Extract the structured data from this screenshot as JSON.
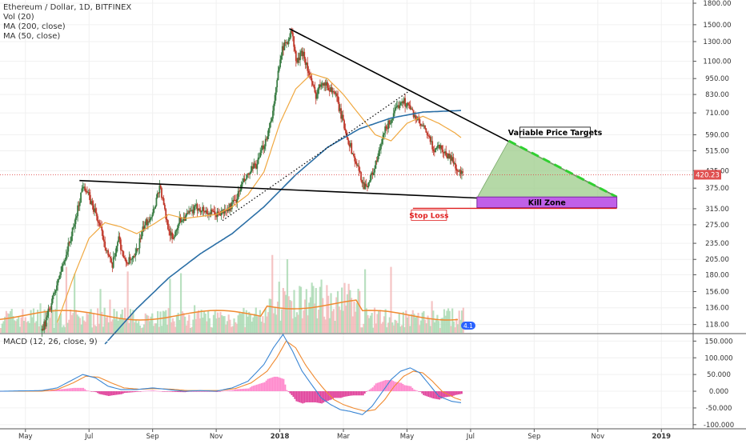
{
  "header": {
    "symbol": "Ethereum / Dollar, 1D, BITFINEX",
    "indicators": [
      "Vol (20)",
      "MA (200, close)",
      "MA (50, close)"
    ]
  },
  "colors": {
    "candle_up": "#3a7d44",
    "candle_down": "#c0392b",
    "ma200": "#2b6fa6",
    "ma50": "#f0a840",
    "vol_ma": "#f08a30",
    "macd_line": "#3a86d4",
    "signal_line": "#f08a30",
    "hist_pos": "#ff88cc",
    "hist_neg": "#e0409a",
    "target_zone": "#9ccc8a",
    "kill_zone": "#c060e8",
    "green_dash": "#30d030",
    "stop_loss": "#e02020"
  },
  "chart_data": [
    {
      "type": "candlestick",
      "title": "Ethereum / Dollar, 1D, BITFINEX",
      "y_scale": "log",
      "ylim": [
        110,
        1800
      ],
      "y_ticks": [
        1800,
        1500,
        1300,
        1100,
        950,
        830,
        710,
        590,
        515,
        435,
        375,
        315,
        275,
        235,
        205,
        180,
        156,
        136,
        118
      ],
      "y_tick_labels": [
        "1800.00",
        "1500.00",
        "1300.00",
        "1100.00",
        "950.00",
        "830.00",
        "710.00",
        "590.00",
        "515.00",
        "435.00",
        "375.00",
        "315.00",
        "275.00",
        "235.00",
        "205.00",
        "180.00",
        "156.00",
        "136.00",
        "118.00"
      ],
      "x_ticks": [
        {
          "label": "May",
          "month": 0
        },
        {
          "label": "Jul",
          "month": 2
        },
        {
          "label": "Sep",
          "month": 4
        },
        {
          "label": "Nov",
          "month": 6
        },
        {
          "label": "2018",
          "month": 8
        },
        {
          "label": "Mar",
          "month": 10
        },
        {
          "label": "May",
          "month": 12
        },
        {
          "label": "Jul",
          "month": 14
        },
        {
          "label": "Sep",
          "month": 16
        },
        {
          "label": "Nov",
          "month": 18
        },
        {
          "label": "2019",
          "month": 20
        }
      ],
      "xlim_months": [
        -0.8,
        21.0
      ],
      "last_price": 420.23,
      "last_price_label": "420.23",
      "price_path": [
        [
          0.5,
          112
        ],
        [
          0.6,
          120
        ],
        [
          1.0,
          170
        ],
        [
          1.5,
          270
        ],
        [
          1.8,
          395
        ],
        [
          2.0,
          340
        ],
        [
          2.2,
          300
        ],
        [
          2.5,
          230
        ],
        [
          2.7,
          190
        ],
        [
          2.9,
          250
        ],
        [
          3.1,
          200
        ],
        [
          3.4,
          205
        ],
        [
          3.7,
          270
        ],
        [
          4.0,
          310
        ],
        [
          4.2,
          385
        ],
        [
          4.4,
          290
        ],
        [
          4.6,
          240
        ],
        [
          4.8,
          285
        ],
        [
          5.1,
          300
        ],
        [
          5.4,
          320
        ],
        [
          5.7,
          305
        ],
        [
          6.0,
          300
        ],
        [
          6.3,
          310
        ],
        [
          6.6,
          340
        ],
        [
          6.8,
          390
        ],
        [
          7.0,
          420
        ],
        [
          7.3,
          470
        ],
        [
          7.6,
          600
        ],
        [
          7.8,
          760
        ],
        [
          8.0,
          1180
        ],
        [
          8.2,
          1300
        ],
        [
          8.35,
          1420
        ],
        [
          8.5,
          1080
        ],
        [
          8.7,
          1200
        ],
        [
          8.9,
          980
        ],
        [
          9.1,
          820
        ],
        [
          9.3,
          940
        ],
        [
          9.5,
          880
        ],
        [
          9.7,
          850
        ],
        [
          9.9,
          700
        ],
        [
          10.1,
          580
        ],
        [
          10.3,
          490
        ],
        [
          10.5,
          420
        ],
        [
          10.65,
          380
        ],
        [
          10.8,
          400
        ],
        [
          11.0,
          460
        ],
        [
          11.3,
          620
        ],
        [
          11.6,
          710
        ],
        [
          11.8,
          800
        ],
        [
          12.0,
          760
        ],
        [
          12.2,
          700
        ],
        [
          12.4,
          640
        ],
        [
          12.6,
          600
        ],
        [
          12.8,
          520
        ],
        [
          13.0,
          540
        ],
        [
          13.2,
          500
        ],
        [
          13.4,
          480
        ],
        [
          13.6,
          430
        ],
        [
          13.75,
          420
        ]
      ],
      "ma200_path": [
        [
          2.5,
          100
        ],
        [
          3.5,
          135
        ],
        [
          4.5,
          175
        ],
        [
          5.5,
          215
        ],
        [
          6.5,
          255
        ],
        [
          7.5,
          320
        ],
        [
          8.5,
          420
        ],
        [
          9.5,
          530
        ],
        [
          10.5,
          620
        ],
        [
          11.5,
          680
        ],
        [
          12.5,
          715
        ],
        [
          13.75,
          725
        ]
      ],
      "ma50_path": [
        [
          1.0,
          120
        ],
        [
          1.5,
          175
        ],
        [
          2.0,
          245
        ],
        [
          2.5,
          280
        ],
        [
          3.0,
          270
        ],
        [
          3.5,
          255
        ],
        [
          4.0,
          275
        ],
        [
          4.5,
          300
        ],
        [
          5.0,
          290
        ],
        [
          5.5,
          295
        ],
        [
          6.0,
          300
        ],
        [
          6.5,
          320
        ],
        [
          7.0,
          355
        ],
        [
          7.5,
          430
        ],
        [
          8.0,
          650
        ],
        [
          8.5,
          870
        ],
        [
          9.0,
          990
        ],
        [
          9.5,
          950
        ],
        [
          10.0,
          830
        ],
        [
          10.5,
          700
        ],
        [
          11.0,
          590
        ],
        [
          11.5,
          560
        ],
        [
          12.0,
          650
        ],
        [
          12.5,
          690
        ],
        [
          13.0,
          650
        ],
        [
          13.5,
          600
        ],
        [
          13.75,
          570
        ]
      ],
      "annotations": [
        {
          "kind": "line",
          "role": "upper-trendline",
          "from": [
            8.3,
            1450
          ],
          "to": [
            18.6,
            348
          ]
        },
        {
          "kind": "line",
          "role": "lower-trendline",
          "from": [
            1.7,
            400
          ],
          "to": [
            14.2,
            345
          ]
        },
        {
          "kind": "dotted-line",
          "role": "rising-support",
          "from": [
            6.2,
            285
          ],
          "to": [
            12.1,
            860
          ]
        },
        {
          "kind": "polygon",
          "role": "price-target-zone",
          "points": [
            [
              14.2,
              345
            ],
            [
              15.2,
              560
            ],
            [
              18.6,
              348
            ]
          ]
        },
        {
          "kind": "dashed-line",
          "role": "price-target-edge",
          "from": [
            15.2,
            560
          ],
          "to": [
            18.6,
            348
          ]
        },
        {
          "kind": "box",
          "role": "kill-zone",
          "x": [
            14.2,
            18.6
          ],
          "y": [
            318,
            348
          ]
        },
        {
          "kind": "line",
          "role": "stop-loss-level",
          "from": [
            14.2,
            316
          ],
          "to": [
            18.6,
            316
          ]
        }
      ],
      "labels": {
        "variable_price_targets": "Variable Price Targets",
        "kill_zone": "Kill Zone",
        "stop_loss": "Stop Loss"
      },
      "volume_badge": "4.1"
    },
    {
      "type": "line",
      "title": "MACD (12, 26, close, 9)",
      "ylim": [
        -110,
        170
      ],
      "y_ticks": [
        150,
        100,
        50,
        0,
        -50,
        -100
      ],
      "y_tick_labels": [
        "150.000",
        "100.000",
        "50.000",
        "0.000",
        "-50.000",
        "-100.000"
      ],
      "series": [
        {
          "role": "macd",
          "points": [
            [
              -0.8,
              0
            ],
            [
              0.5,
              2
            ],
            [
              1.0,
              10
            ],
            [
              1.5,
              35
            ],
            [
              1.8,
              50
            ],
            [
              2.2,
              40
            ],
            [
              2.6,
              15
            ],
            [
              3.0,
              5
            ],
            [
              3.5,
              5
            ],
            [
              4.0,
              10
            ],
            [
              4.5,
              5
            ],
            [
              5.0,
              0
            ],
            [
              5.5,
              2
            ],
            [
              6.0,
              0
            ],
            [
              6.5,
              10
            ],
            [
              7.0,
              30
            ],
            [
              7.5,
              80
            ],
            [
              7.8,
              130
            ],
            [
              8.1,
              170
            ],
            [
              8.4,
              120
            ],
            [
              8.7,
              60
            ],
            [
              9.0,
              20
            ],
            [
              9.3,
              -20
            ],
            [
              9.6,
              -40
            ],
            [
              9.9,
              -55
            ],
            [
              10.2,
              -60
            ],
            [
              10.6,
              -70
            ],
            [
              10.9,
              -45
            ],
            [
              11.2,
              -5
            ],
            [
              11.5,
              35
            ],
            [
              11.8,
              60
            ],
            [
              12.1,
              70
            ],
            [
              12.4,
              55
            ],
            [
              12.7,
              20
            ],
            [
              13.0,
              -15
            ],
            [
              13.4,
              -30
            ],
            [
              13.75,
              -35
            ]
          ]
        },
        {
          "role": "signal",
          "points": [
            [
              -0.8,
              0
            ],
            [
              0.5,
              0
            ],
            [
              1.0,
              5
            ],
            [
              1.5,
              25
            ],
            [
              1.9,
              45
            ],
            [
              2.3,
              42
            ],
            [
              2.7,
              25
            ],
            [
              3.1,
              10
            ],
            [
              3.6,
              6
            ],
            [
              4.1,
              8
            ],
            [
              4.6,
              6
            ],
            [
              5.1,
              2
            ],
            [
              5.6,
              2
            ],
            [
              6.1,
              2
            ],
            [
              6.6,
              8
            ],
            [
              7.1,
              25
            ],
            [
              7.6,
              60
            ],
            [
              7.9,
              100
            ],
            [
              8.2,
              150
            ],
            [
              8.5,
              130
            ],
            [
              8.8,
              80
            ],
            [
              9.1,
              40
            ],
            [
              9.4,
              5
            ],
            [
              9.7,
              -25
            ],
            [
              10.0,
              -40
            ],
            [
              10.3,
              -50
            ],
            [
              10.7,
              -60
            ],
            [
              11.0,
              -55
            ],
            [
              11.3,
              -25
            ],
            [
              11.6,
              15
            ],
            [
              11.9,
              45
            ],
            [
              12.2,
              60
            ],
            [
              12.5,
              55
            ],
            [
              12.8,
              30
            ],
            [
              13.1,
              0
            ],
            [
              13.5,
              -20
            ],
            [
              13.75,
              -28
            ]
          ]
        }
      ]
    }
  ]
}
